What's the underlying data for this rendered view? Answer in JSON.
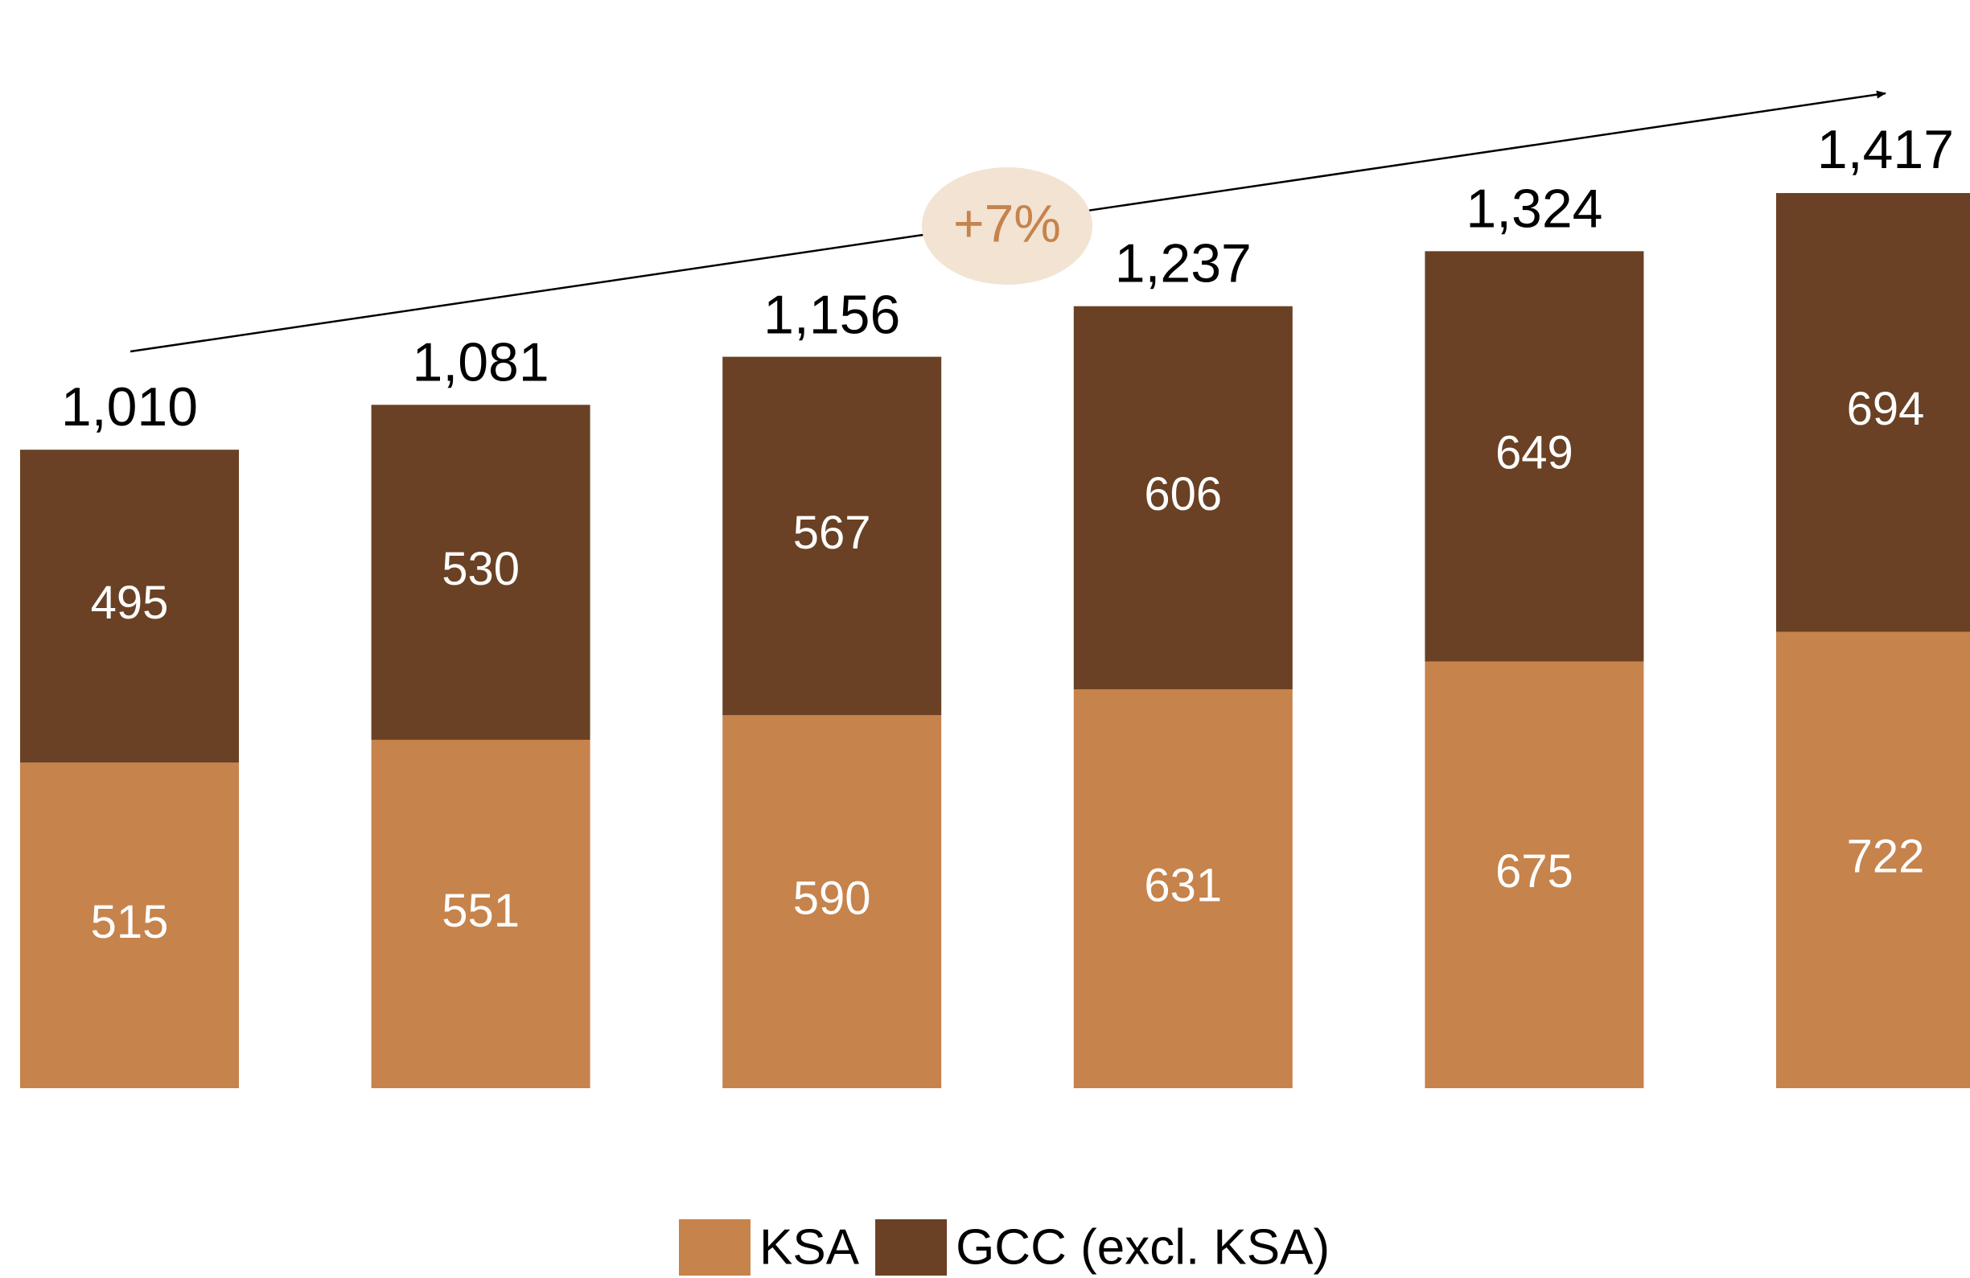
{
  "chart_data": {
    "type": "stacked_bar",
    "categories": [
      null,
      null,
      null,
      null,
      null,
      null
    ],
    "series": [
      {
        "name": "KSA",
        "color": "#c6834c",
        "values": [
          515,
          551,
          590,
          631,
          675,
          722
        ]
      },
      {
        "name": "GCC (excl. KSA)",
        "color": "#6a4124",
        "values": [
          495,
          530,
          567,
          606,
          649,
          694
        ]
      }
    ],
    "totals": [
      1010,
      1081,
      1156,
      1237,
      1324,
      1417
    ],
    "total_labels": [
      "1,010",
      "1,081",
      "1,156",
      "1,237",
      "1,324",
      "1,417"
    ],
    "annotation": "+7%",
    "ylim": [
      0,
      1500
    ]
  }
}
